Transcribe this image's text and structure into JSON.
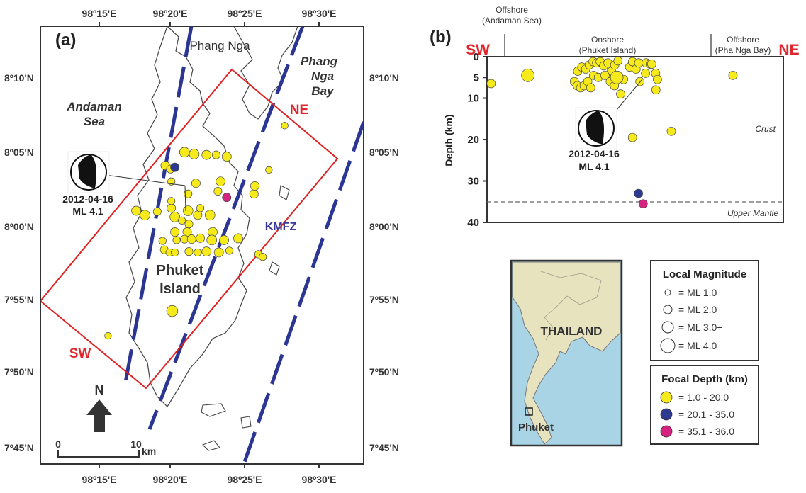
{
  "panel_a": {
    "panel_label": "(a)",
    "lon_ticks": [
      "98º15'E",
      "98º20'E",
      "98º25'E",
      "98º30'E"
    ],
    "lat_ticks_left": [
      "8º10'N",
      "8º05'N",
      "8º00'N",
      "7º55'N",
      "7º50'N",
      "7º45'N"
    ],
    "lat_ticks_right": [
      "8º10'N",
      "8º05'N",
      "8º00'N",
      "7º55'N",
      "7º50'N",
      "7º45'N"
    ],
    "place_phang_nga": "Phang Nga",
    "place_phang_nga_bay": [
      "Phang",
      "Nga",
      "Bay"
    ],
    "place_andaman_sea": [
      "Andaman",
      "Sea"
    ],
    "place_phuket_island": [
      "Phuket",
      "Island"
    ],
    "fault_label": "KMFZ",
    "profile_ne": "NE",
    "profile_sw": "SW",
    "mechanism_date": "2012-04-16",
    "mechanism_mag": "ML 4.1",
    "north_label": "N",
    "scale_start": "0",
    "scale_end": "10",
    "scale_unit": "km",
    "epicenters": [
      {
        "lon": 98.347,
        "lat": 8.083,
        "depth_class": "shallow",
        "ml": 2.8
      },
      {
        "lon": 98.358,
        "lat": 8.081,
        "depth_class": "shallow",
        "ml": 2.8
      },
      {
        "lon": 98.372,
        "lat": 8.08,
        "depth_class": "shallow",
        "ml": 2.6
      },
      {
        "lon": 98.383,
        "lat": 8.08,
        "depth_class": "shallow",
        "ml": 2.2
      },
      {
        "lon": 98.395,
        "lat": 8.078,
        "depth_class": "shallow",
        "ml": 2.6
      },
      {
        "lon": 98.325,
        "lat": 8.068,
        "depth_class": "shallow",
        "ml": 2.4
      },
      {
        "lon": 98.331,
        "lat": 8.064,
        "depth_class": "shallow",
        "ml": 2.2
      },
      {
        "lon": 98.332,
        "lat": 8.05,
        "depth_class": "shallow",
        "ml": 2.0
      },
      {
        "lon": 98.36,
        "lat": 8.048,
        "depth_class": "shallow",
        "ml": 2.4
      },
      {
        "lon": 98.388,
        "lat": 8.05,
        "depth_class": "shallow",
        "ml": 2.6
      },
      {
        "lon": 98.385,
        "lat": 8.039,
        "depth_class": "shallow",
        "ml": 2.2
      },
      {
        "lon": 98.292,
        "lat": 8.017,
        "depth_class": "shallow",
        "ml": 2.6
      },
      {
        "lon": 98.302,
        "lat": 8.012,
        "depth_class": "shallow",
        "ml": 2.8
      },
      {
        "lon": 98.316,
        "lat": 8.016,
        "depth_class": "shallow",
        "ml": 2.2
      },
      {
        "lon": 98.332,
        "lat": 8.02,
        "depth_class": "shallow",
        "ml": 2.4
      },
      {
        "lon": 98.336,
        "lat": 8.01,
        "depth_class": "shallow",
        "ml": 2.8
      },
      {
        "lon": 98.332,
        "lat": 8.028,
        "depth_class": "shallow",
        "ml": 2.0
      },
      {
        "lon": 98.351,
        "lat": 8.017,
        "depth_class": "shallow",
        "ml": 2.8
      },
      {
        "lon": 98.362,
        "lat": 8.012,
        "depth_class": "shallow",
        "ml": 2.4
      },
      {
        "lon": 98.376,
        "lat": 8.012,
        "depth_class": "shallow",
        "ml": 2.8
      },
      {
        "lon": 98.365,
        "lat": 8.02,
        "depth_class": "shallow",
        "ml": 2.0
      },
      {
        "lon": 98.344,
        "lat": 8.006,
        "depth_class": "shallow",
        "ml": 2.0
      },
      {
        "lon": 98.352,
        "lat": 8.002,
        "depth_class": "shallow",
        "ml": 2.2
      },
      {
        "lon": 98.336,
        "lat": 7.993,
        "depth_class": "shallow",
        "ml": 2.4
      },
      {
        "lon": 98.35,
        "lat": 7.993,
        "depth_class": "shallow",
        "ml": 2.4
      },
      {
        "lon": 98.379,
        "lat": 7.993,
        "depth_class": "shallow",
        "ml": 2.6
      },
      {
        "lon": 98.322,
        "lat": 7.983,
        "depth_class": "shallow",
        "ml": 2.0
      },
      {
        "lon": 98.338,
        "lat": 7.984,
        "depth_class": "shallow",
        "ml": 2.0
      },
      {
        "lon": 98.347,
        "lat": 7.985,
        "depth_class": "shallow",
        "ml": 2.2
      },
      {
        "lon": 98.355,
        "lat": 7.985,
        "depth_class": "shallow",
        "ml": 2.4
      },
      {
        "lon": 98.365,
        "lat": 7.986,
        "depth_class": "shallow",
        "ml": 2.4
      },
      {
        "lon": 98.378,
        "lat": 7.984,
        "depth_class": "shallow",
        "ml": 2.8
      },
      {
        "lon": 98.392,
        "lat": 7.984,
        "depth_class": "shallow",
        "ml": 2.6
      },
      {
        "lon": 98.408,
        "lat": 7.986,
        "depth_class": "shallow",
        "ml": 2.6
      },
      {
        "lon": 98.324,
        "lat": 7.973,
        "depth_class": "shallow",
        "ml": 2.2
      },
      {
        "lon": 98.33,
        "lat": 7.97,
        "depth_class": "shallow",
        "ml": 2.0
      },
      {
        "lon": 98.336,
        "lat": 7.97,
        "depth_class": "shallow",
        "ml": 2.0
      },
      {
        "lon": 98.352,
        "lat": 7.971,
        "depth_class": "shallow",
        "ml": 2.2
      },
      {
        "lon": 98.362,
        "lat": 7.97,
        "depth_class": "shallow",
        "ml": 2.0
      },
      {
        "lon": 98.372,
        "lat": 7.971,
        "depth_class": "shallow",
        "ml": 2.6
      },
      {
        "lon": 98.386,
        "lat": 7.97,
        "depth_class": "shallow",
        "ml": 2.6
      },
      {
        "lon": 98.398,
        "lat": 7.972,
        "depth_class": "shallow",
        "ml": 2.0
      },
      {
        "lon": 98.431,
        "lat": 7.968,
        "depth_class": "shallow",
        "ml": 2.0
      },
      {
        "lon": 98.436,
        "lat": 7.965,
        "depth_class": "shallow",
        "ml": 2.0
      },
      {
        "lon": 98.351,
        "lat": 8.036,
        "depth_class": "shallow",
        "ml": 2.2
      },
      {
        "lon": 98.426,
        "lat": 8.036,
        "depth_class": "shallow",
        "ml": 2.4
      },
      {
        "lon": 98.427,
        "lat": 8.045,
        "depth_class": "shallow",
        "ml": 2.4
      },
      {
        "lon": 98.443,
        "lat": 8.063,
        "depth_class": "shallow",
        "ml": 1.8
      },
      {
        "lon": 98.461,
        "lat": 8.113,
        "depth_class": "shallow",
        "ml": 1.8
      },
      {
        "lon": 98.333,
        "lat": 7.904,
        "depth_class": "shallow",
        "ml": 3.2
      },
      {
        "lon": 98.26,
        "lat": 7.876,
        "depth_class": "shallow",
        "ml": 1.8
      },
      {
        "lon": 98.336,
        "lat": 8.066,
        "depth_class": "medium",
        "ml": 2.4
      },
      {
        "lon": 98.395,
        "lat": 8.032,
        "depth_class": "deep",
        "ml": 2.4
      }
    ]
  },
  "panel_b": {
    "panel_label": "(b)",
    "sw_label": "SW",
    "ne_label": "NE",
    "zone_offshore_west": [
      "Offshore",
      "(Andaman Sea)"
    ],
    "zone_onshore": [
      "Onshore",
      "(Phuket Island)"
    ],
    "zone_offshore_east": [
      "Offshore",
      "(Pha Nga Bay)"
    ],
    "ylabel": "Depth (km)",
    "y_ticks": [
      "0",
      "5",
      "10",
      "20",
      "30",
      "40"
    ],
    "crust_label": "Crust",
    "mantle_label": "Upper Mantle",
    "moho_depth_km": 35,
    "mechanism_date": "2012-04-16",
    "mechanism_mag": "ML 4.1"
  },
  "chart_data": {
    "type": "scatter",
    "title": "",
    "xlabel": "",
    "ylabel": "Depth (km)",
    "ylim": [
      0,
      40
    ],
    "note": "Hypocenter depths along SW–NE profile; x is relative position along profile (0 = SW end, 1 = NE end)",
    "points": [
      {
        "x": 0.014,
        "y": 6.5,
        "depth_class": "shallow"
      },
      {
        "x": 0.138,
        "y": 4.5,
        "depth_class": "shallow"
      },
      {
        "x": 0.295,
        "y": 6.0,
        "depth_class": "shallow"
      },
      {
        "x": 0.305,
        "y": 7.0,
        "depth_class": "shallow"
      },
      {
        "x": 0.316,
        "y": 7.5,
        "depth_class": "shallow"
      },
      {
        "x": 0.328,
        "y": 7.0,
        "depth_class": "shallow"
      },
      {
        "x": 0.34,
        "y": 6.0,
        "depth_class": "shallow"
      },
      {
        "x": 0.35,
        "y": 7.5,
        "depth_class": "shallow"
      },
      {
        "x": 0.306,
        "y": 3.5,
        "depth_class": "shallow"
      },
      {
        "x": 0.32,
        "y": 2.5,
        "depth_class": "shallow"
      },
      {
        "x": 0.333,
        "y": 3.0,
        "depth_class": "shallow"
      },
      {
        "x": 0.345,
        "y": 2.0,
        "depth_class": "shallow"
      },
      {
        "x": 0.358,
        "y": 1.2,
        "depth_class": "shallow"
      },
      {
        "x": 0.37,
        "y": 1.5,
        "depth_class": "shallow"
      },
      {
        "x": 0.382,
        "y": 1.2,
        "depth_class": "shallow"
      },
      {
        "x": 0.394,
        "y": 2.2,
        "depth_class": "shallow"
      },
      {
        "x": 0.408,
        "y": 1.5,
        "depth_class": "shallow"
      },
      {
        "x": 0.42,
        "y": 3.5,
        "depth_class": "shallow"
      },
      {
        "x": 0.431,
        "y": 2.0,
        "depth_class": "shallow"
      },
      {
        "x": 0.442,
        "y": 1.0,
        "depth_class": "shallow"
      },
      {
        "x": 0.36,
        "y": 4.5,
        "depth_class": "shallow"
      },
      {
        "x": 0.376,
        "y": 5.0,
        "depth_class": "shallow"
      },
      {
        "x": 0.398,
        "y": 4.5,
        "depth_class": "shallow"
      },
      {
        "x": 0.416,
        "y": 6.0,
        "depth_class": "shallow"
      },
      {
        "x": 0.43,
        "y": 7.0,
        "depth_class": "shallow"
      },
      {
        "x": 0.451,
        "y": 9.0,
        "depth_class": "shallow"
      },
      {
        "x": 0.461,
        "y": 5.5,
        "depth_class": "shallow"
      },
      {
        "x": 0.481,
        "y": 2.5,
        "depth_class": "shallow"
      },
      {
        "x": 0.491,
        "y": 1.2,
        "depth_class": "shallow"
      },
      {
        "x": 0.503,
        "y": 3.0,
        "depth_class": "shallow"
      },
      {
        "x": 0.512,
        "y": 1.5,
        "depth_class": "shallow"
      },
      {
        "x": 0.537,
        "y": 1.5,
        "depth_class": "shallow"
      },
      {
        "x": 0.551,
        "y": 1.8,
        "depth_class": "shallow"
      },
      {
        "x": 0.516,
        "y": 6.0,
        "depth_class": "shallow"
      },
      {
        "x": 0.535,
        "y": 4.0,
        "depth_class": "shallow"
      },
      {
        "x": 0.556,
        "y": 1.8,
        "depth_class": "shallow"
      },
      {
        "x": 0.569,
        "y": 4.0,
        "depth_class": "shallow"
      },
      {
        "x": 0.575,
        "y": 5.5,
        "depth_class": "shallow"
      },
      {
        "x": 0.57,
        "y": 8.0,
        "depth_class": "shallow"
      },
      {
        "x": 0.491,
        "y": 19.5,
        "depth_class": "shallow"
      },
      {
        "x": 0.622,
        "y": 18.0,
        "depth_class": "shallow"
      },
      {
        "x": 0.83,
        "y": 4.5,
        "depth_class": "shallow"
      },
      {
        "x": 0.438,
        "y": 5.0,
        "depth_class": "shallow"
      },
      {
        "x": 0.511,
        "y": 33.0,
        "depth_class": "medium"
      },
      {
        "x": 0.527,
        "y": 35.5,
        "depth_class": "deep"
      }
    ]
  },
  "inset": {
    "country_label": "THAILAND",
    "city_label": "Phuket"
  },
  "legend_magnitude": {
    "title": "Local Magnitude",
    "items": [
      "= ML 1.0+",
      "= ML 2.0+",
      "= ML 3.0+",
      "= ML 4.0+"
    ]
  },
  "legend_depth": {
    "title": "Focal Depth (km)",
    "items": [
      "= 1.0 - 20.0",
      "= 20.1 - 35.0",
      "= 35.1 - 36.0"
    ]
  },
  "colors": {
    "shallow": "#f7ea1c",
    "medium": "#2e3a8f",
    "deep": "#d6237f",
    "profile": "#e02020",
    "fault": "#2b3593",
    "label_red": "#e0262c",
    "fault_label": "#3b3a9a",
    "sea": "#a8d4e6",
    "land": "#e8e3bf"
  }
}
